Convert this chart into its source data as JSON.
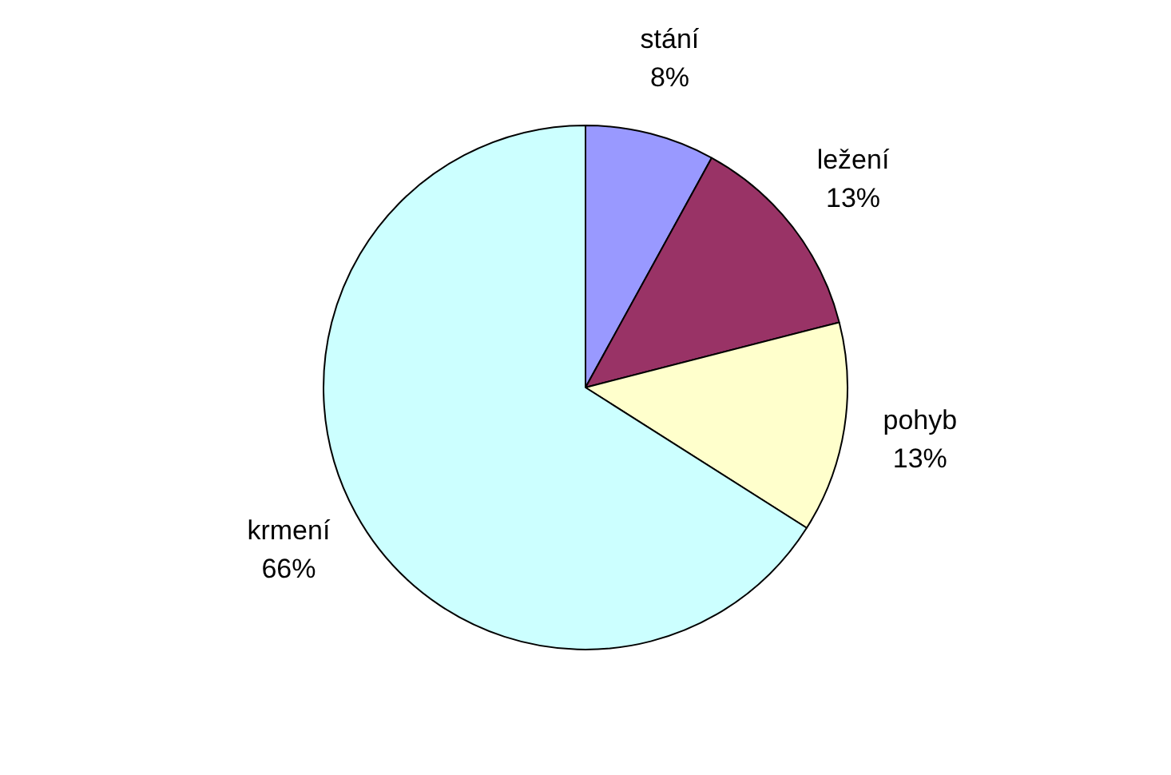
{
  "chart_data": {
    "type": "pie",
    "categories": [
      "stání",
      "ležení",
      "pohyb",
      "krmení"
    ],
    "values": [
      8,
      13,
      13,
      66
    ],
    "colors": [
      "#9999ff",
      "#993366",
      "#ffffcc",
      "#ccffff"
    ],
    "value_labels": [
      "8%",
      "13%",
      "13%",
      "66%"
    ],
    "legend": false
  }
}
